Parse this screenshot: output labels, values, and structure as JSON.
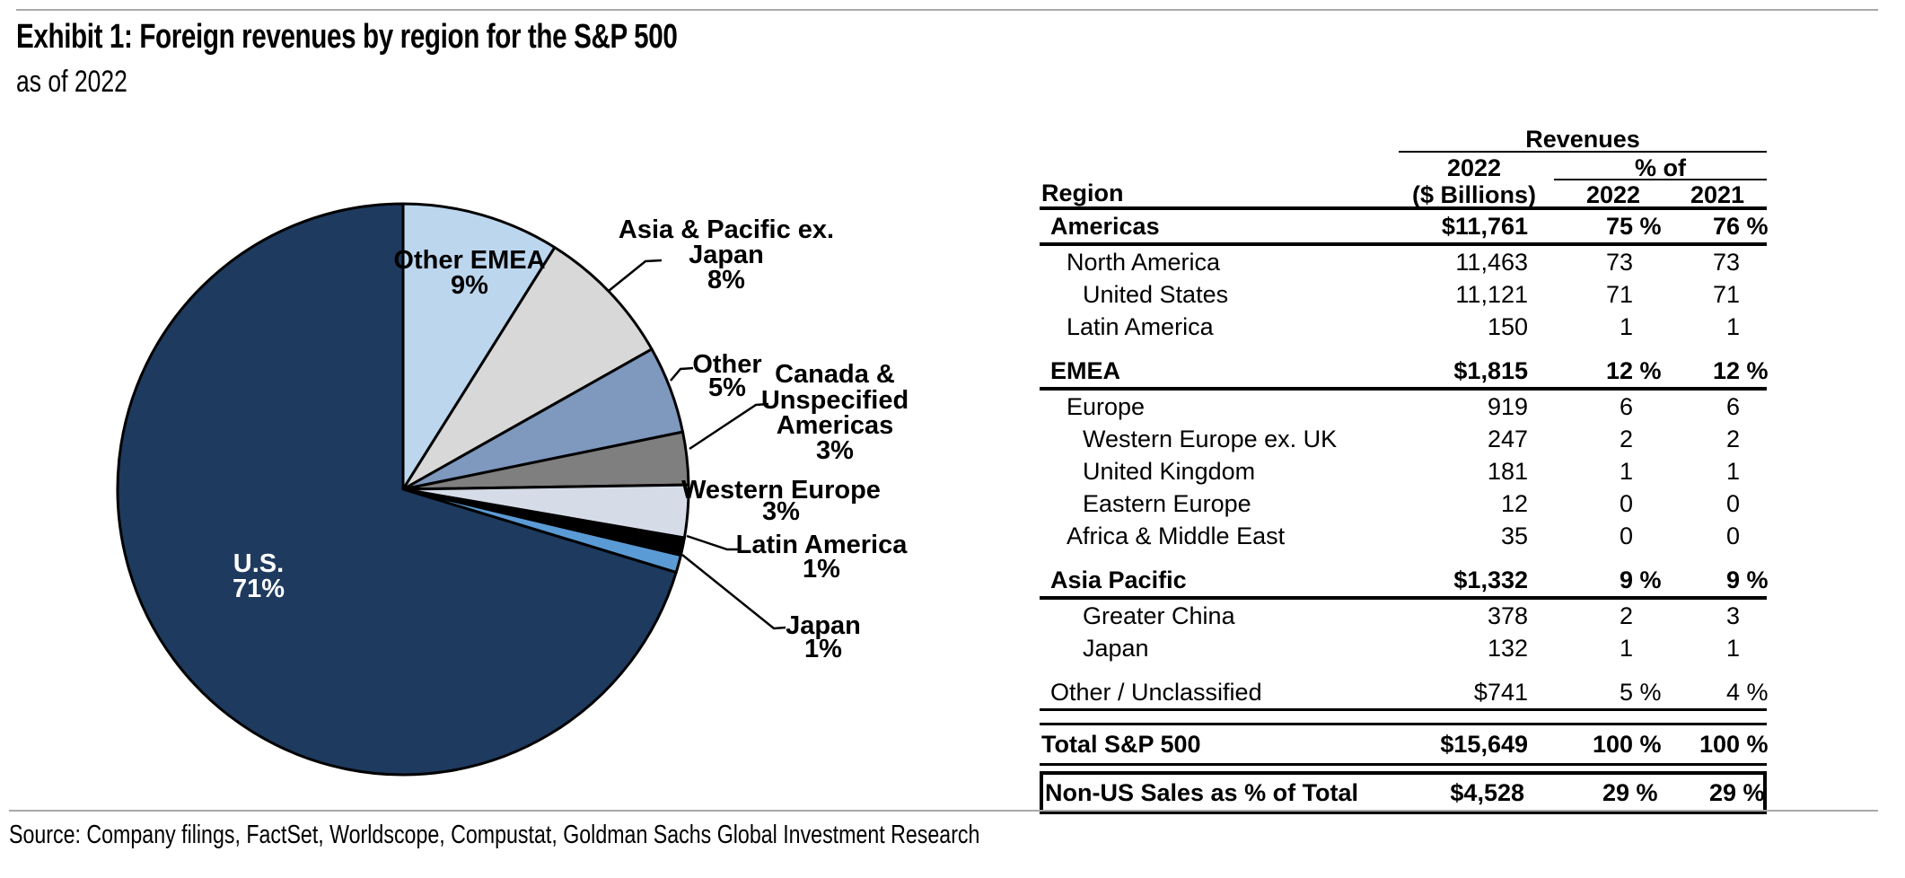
{
  "title": "Exhibit 1: Foreign revenues by region for the S&P 500",
  "subtitle": "as of 2022",
  "source": "Source: Company filings, FactSet, Worldscope, Compustat, Goldman Sachs Global Investment Research",
  "chart_data": {
    "type": "pie",
    "title": "Foreign revenues by region for the S&P 500 as of 2022",
    "legend_position": "outside-labels",
    "slices": [
      {
        "label": "Other EMEA",
        "pct": 9,
        "color": "#BCD6EE",
        "label_lines": [
          "Other EMEA",
          "9%"
        ],
        "label_placement": "inside"
      },
      {
        "label": "Asia & Pacific ex. Japan",
        "pct": 8,
        "color": "#D8D8D8",
        "label_lines": [
          "Asia & Pacific ex.",
          "Japan",
          "8%"
        ],
        "label_placement": "outside"
      },
      {
        "label": "Other",
        "pct": 5,
        "color": "#7E98BE",
        "label_lines": [
          "Other",
          "5%"
        ],
        "label_placement": "outside"
      },
      {
        "label": "Canada & Unspecified Americas",
        "pct": 3,
        "color": "#7F7F7F",
        "label_lines": [
          "Canada &",
          "Unspecified",
          "Americas",
          "3%"
        ],
        "label_placement": "outside"
      },
      {
        "label": "Western Europe",
        "pct": 3,
        "color": "#D5DCE8",
        "label_lines": [
          "Western Europe",
          "3%"
        ],
        "label_placement": "outside"
      },
      {
        "label": "Latin America",
        "pct": 1,
        "color": "#000000",
        "label_lines": [
          "Latin America",
          "1%"
        ],
        "label_placement": "outside"
      },
      {
        "label": "Japan",
        "pct": 1,
        "color": "#5B9BD5",
        "label_lines": [
          "Japan",
          "1%"
        ],
        "label_placement": "outside"
      },
      {
        "label": "U.S.",
        "pct": 71,
        "color": "#1E3A5F",
        "label_lines": [
          "U.S.",
          "71%"
        ],
        "label_placement": "inside",
        "label_color": "#FFFFFF"
      }
    ]
  },
  "table": {
    "header": {
      "region": "Region",
      "revenues": "Revenues",
      "col1_line1": "2022",
      "col1_line2": "($ Billions)",
      "pct_of": "% of",
      "col2": "2022",
      "col3": "2021"
    },
    "rows": [
      {
        "kind": "group",
        "indent": 1,
        "label": "Americas",
        "v": [
          "$11,761",
          "75 %",
          "76 %"
        ]
      },
      {
        "kind": "item",
        "indent": 2,
        "label": "North America",
        "v": [
          "11,463",
          "73",
          "73"
        ]
      },
      {
        "kind": "item",
        "indent": 3,
        "label": "United States",
        "v": [
          "11,121",
          "71",
          "71"
        ]
      },
      {
        "kind": "item",
        "indent": 2,
        "label": "Latin America",
        "v": [
          "150",
          "1",
          "1"
        ]
      },
      {
        "kind": "gap"
      },
      {
        "kind": "group",
        "indent": 1,
        "label": "EMEA",
        "v": [
          "$1,815",
          "12 %",
          "12 %"
        ]
      },
      {
        "kind": "item",
        "indent": 2,
        "label": "Europe",
        "v": [
          "919",
          "6",
          "6"
        ]
      },
      {
        "kind": "item",
        "indent": 3,
        "label": "Western Europe ex. UK",
        "v": [
          "247",
          "2",
          "2"
        ]
      },
      {
        "kind": "item",
        "indent": 3,
        "label": "United Kingdom",
        "v": [
          "181",
          "1",
          "1"
        ]
      },
      {
        "kind": "item",
        "indent": 3,
        "label": "Eastern Europe",
        "v": [
          "12",
          "0",
          "0"
        ]
      },
      {
        "kind": "item",
        "indent": 2,
        "label": "Africa & Middle East",
        "v": [
          "35",
          "0",
          "0"
        ]
      },
      {
        "kind": "gap"
      },
      {
        "kind": "group",
        "indent": 1,
        "label": "Asia Pacific",
        "v": [
          "$1,332",
          "9 %",
          "9 %"
        ]
      },
      {
        "kind": "item",
        "indent": 3,
        "label": "Greater China",
        "v": [
          "378",
          "2",
          "3"
        ]
      },
      {
        "kind": "item",
        "indent": 3,
        "label": "Japan",
        "v": [
          "132",
          "1",
          "1"
        ]
      },
      {
        "kind": "gap"
      },
      {
        "kind": "other",
        "indent": 1,
        "label": "Other / Unclassified",
        "v": [
          "$741",
          "5 %",
          "4 %"
        ]
      },
      {
        "kind": "total",
        "indent": 0,
        "label": "Total S&P 500",
        "v": [
          "$15,649",
          "100 %",
          "100 %"
        ]
      },
      {
        "kind": "boxed",
        "indent": 0,
        "label": "Non-US Sales as % of Total",
        "v": [
          "$4,528",
          "29 %",
          "29 %"
        ]
      }
    ]
  }
}
